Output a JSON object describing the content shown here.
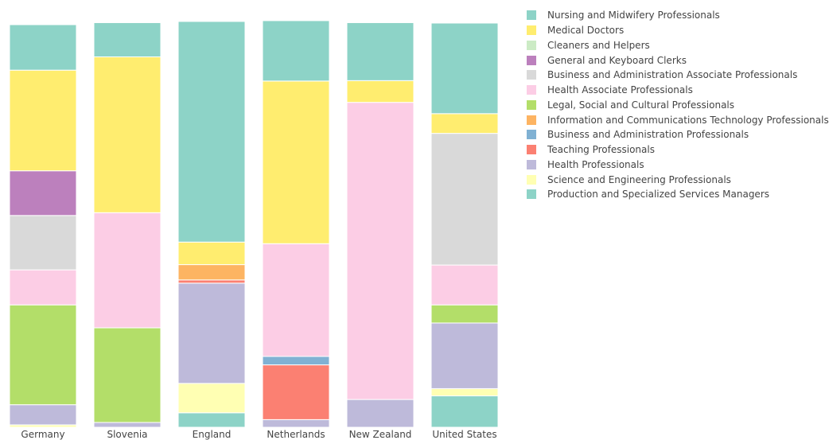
{
  "chart_data": {
    "type": "bar",
    "stacked": true,
    "normalized": true,
    "title": "",
    "xlabel": "",
    "ylabel": "",
    "ylim": [
      0,
      100
    ],
    "legend_position": "top-right",
    "categories": [
      "Germany",
      "Slovenia",
      "England",
      "Netherlands",
      "New Zealand",
      "United States"
    ],
    "series": [
      {
        "name": "Nursing and Midwifery Professionals",
        "color": "#8dd3c7",
        "values": [
          11.3,
          8.5,
          54.8,
          15.0,
          14.4,
          22.5
        ]
      },
      {
        "name": "Medical Doctors",
        "color": "#ffed6f",
        "values": [
          25.0,
          38.7,
          5.6,
          40.4,
          5.4,
          4.9
        ]
      },
      {
        "name": "Cleaners and Helpers",
        "color": "#ccebc5",
        "values": [
          0,
          0,
          0,
          0,
          0,
          0
        ]
      },
      {
        "name": "General and Keyboard Clerks",
        "color": "#bc80bd",
        "values": [
          11.1,
          0,
          0,
          0,
          0,
          0
        ]
      },
      {
        "name": "Business and Administration Associate Professionals",
        "color": "#d9d9d9",
        "values": [
          13.5,
          0,
          0,
          0,
          0,
          32.7
        ]
      },
      {
        "name": "Health Associate Professionals",
        "color": "#fccde5",
        "values": [
          8.7,
          28.6,
          0,
          28.0,
          73.8,
          9.9
        ]
      },
      {
        "name": "Legal, Social and Cultural Professionals",
        "color": "#b3de69",
        "values": [
          24.8,
          23.5,
          0,
          0,
          0,
          4.5
        ]
      },
      {
        "name": "Information and Communications Technology Professionals",
        "color": "#fdb462",
        "values": [
          0,
          0,
          3.8,
          0,
          0,
          0
        ]
      },
      {
        "name": "Business and Administration Professionals",
        "color": "#80b1d3",
        "values": [
          0,
          0,
          0,
          2.1,
          0,
          0
        ]
      },
      {
        "name": "Teaching Professionals",
        "color": "#fb8072",
        "values": [
          0,
          0,
          0.8,
          13.6,
          0,
          0
        ]
      },
      {
        "name": "Health Professionals",
        "color": "#bebada",
        "values": [
          5.0,
          1.2,
          24.9,
          1.9,
          6.9,
          16.3
        ]
      },
      {
        "name": "Science and Engineering Professionals",
        "color": "#ffffb3",
        "values": [
          0.6,
          0,
          7.3,
          0,
          0,
          1.8
        ]
      },
      {
        "name": "Production and Specialized Services Managers",
        "color": "#8dd3c7",
        "values": [
          0,
          0,
          3.6,
          0,
          0,
          7.8
        ]
      }
    ]
  }
}
